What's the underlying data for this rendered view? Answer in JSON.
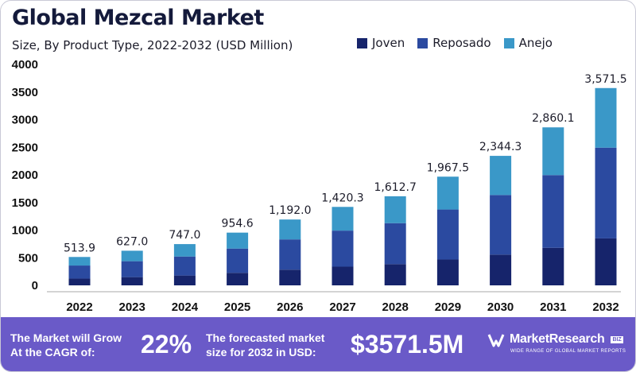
{
  "header": {
    "title": "Global Mezcal Market",
    "subtitle": "Size, By Product Type, 2022-2032 (USD Million)"
  },
  "colors": {
    "joven": "#16246b",
    "reposado": "#2b4aa0",
    "anejo": "#3a98c8",
    "footer_bg": "#6a5ac8"
  },
  "chart_data": {
    "type": "bar",
    "stacked": true,
    "categories": [
      "2022",
      "2023",
      "2024",
      "2025",
      "2026",
      "2027",
      "2028",
      "2029",
      "2030",
      "2031",
      "2032"
    ],
    "series": [
      {
        "name": "Joven",
        "values": [
          123,
          149,
          178,
          227,
          284,
          338,
          384,
          468,
          557,
          680,
          850
        ]
      },
      {
        "name": "Reposado",
        "values": [
          236,
          288,
          344,
          439,
          548,
          653,
          742,
          905,
          1079,
          1316,
          1643
        ]
      },
      {
        "name": "Anejo",
        "values": [
          154.9,
          190,
          225,
          288.6,
          360,
          429.3,
          486.7,
          594.5,
          708.3,
          864.1,
          1078.5
        ]
      }
    ],
    "totals": [
      "513.9",
      "627.0",
      "747.0",
      "954.6",
      "1,192.0",
      "1,420.3",
      "1,612.7",
      "1,967.5",
      "2,344.3",
      "2,860.1",
      "3,571.5"
    ],
    "ylim": [
      0,
      4000
    ],
    "yticks": [
      "0",
      "500",
      "1000",
      "1500",
      "2000",
      "2500",
      "3000",
      "3500",
      "4000"
    ],
    "ytick_values": [
      0,
      500,
      1000,
      1500,
      2000,
      2500,
      3000,
      3500,
      4000
    ],
    "legend_position": "top-right",
    "grid": false
  },
  "footer": {
    "cagr_text_line1": "The Market will Grow",
    "cagr_text_line2": "At the CAGR of:",
    "cagr_value": "22%",
    "forecast_text_line1": "The forecasted market",
    "forecast_text_line2": "size for 2032 in USD:",
    "forecast_value": "$3571.5M",
    "brand_name": "MarketResearch",
    "brand_badge": "BIZ",
    "brand_tagline": "WIDE RANGE OF GLOBAL MARKET REPORTS"
  }
}
